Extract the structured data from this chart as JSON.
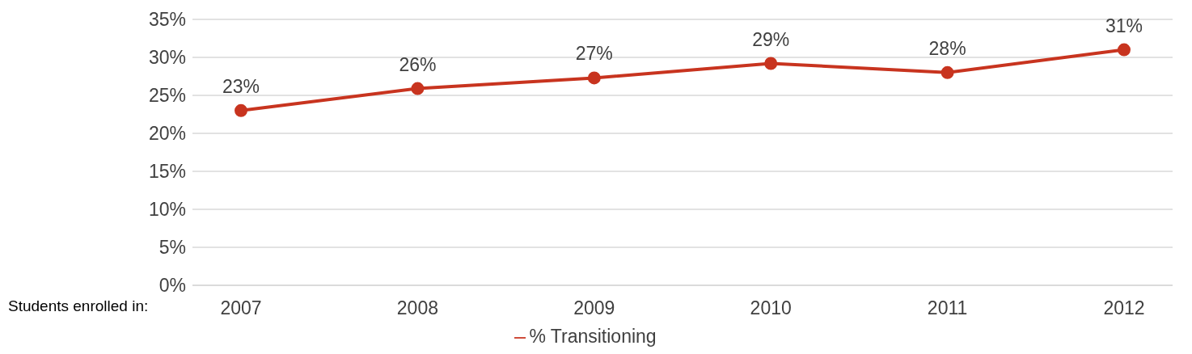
{
  "chart_data": {
    "type": "line",
    "xlabel": "Students enrolled in:",
    "categories": [
      "2007",
      "2008",
      "2009",
      "2010",
      "2011",
      "2012"
    ],
    "series": [
      {
        "name": "% Transitioning",
        "color": "#c8341f",
        "values": [
          23,
          25.9,
          27.3,
          29.2,
          28,
          31
        ],
        "value_labels": [
          "23%",
          "26%",
          "27%",
          "29%",
          "28%",
          "31%"
        ]
      }
    ],
    "ylim": [
      0,
      35
    ],
    "yticks": [
      {
        "value": 0,
        "label": "0%"
      },
      {
        "value": 5,
        "label": "5%"
      },
      {
        "value": 10,
        "label": "10%"
      },
      {
        "value": 15,
        "label": "15%"
      },
      {
        "value": 20,
        "label": "20%"
      },
      {
        "value": 25,
        "label": "25%"
      },
      {
        "value": 30,
        "label": "30%"
      },
      {
        "value": 35,
        "label": "35%"
      }
    ],
    "grid": "y",
    "legend": "bottom",
    "marker": "circle",
    "line_style": "solid"
  }
}
